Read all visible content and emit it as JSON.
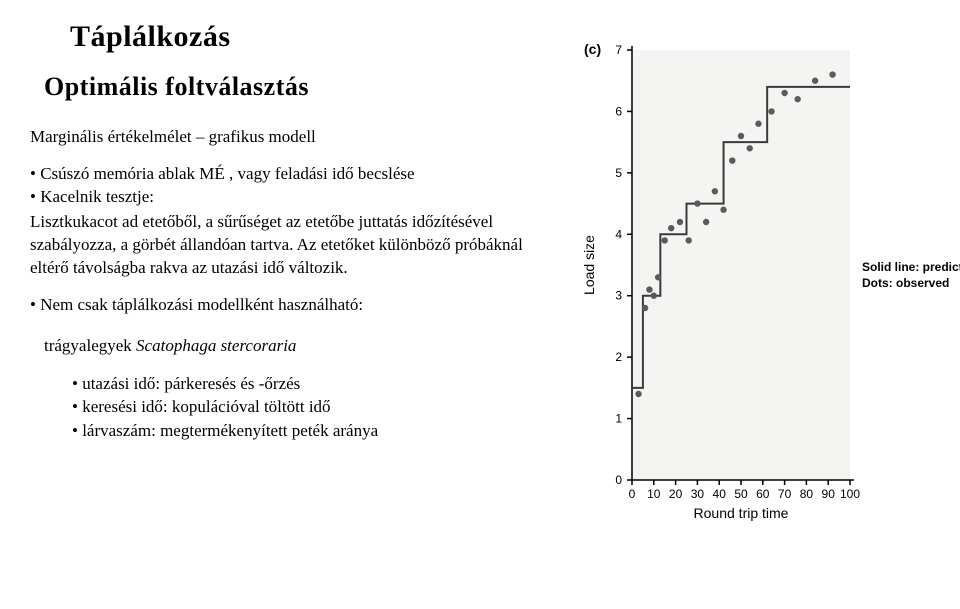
{
  "title": "Táplálkozás",
  "subtitle": "Optimális foltválasztás",
  "para1": "Marginális értékelmélet – grafikus modell",
  "bullet1a": "Csúszó memória ablak MÉ , vagy feladási idő becslése",
  "bullet1b": "Kacelnik tesztje:",
  "para2": "Lisztkukacot ad etetőből, a sűrűséget az etetőbe juttatás időzítésével szabályozza, a görbét állandóan tartva. Az etetőket különböző próbáknál eltérő távolságba rakva az utazási idő változik.",
  "bullet2": "Nem csak táplálkozási modellként használható:",
  "species_pre": "trágyalegyek ",
  "species_italic": "Scatophaga stercoraria",
  "sub1": "utazási idő: párkeresés és -őrzés",
  "sub2": "keresési idő: kopulációval töltött idő",
  "sub3": "lárvaszám: megtermékenyített peték aránya",
  "chart": {
    "type": "scatter-step",
    "panel_label": "(c)",
    "ylabel": "Load size",
    "xlabel": "Round trip time",
    "legend1": "Solid line: prediction",
    "legend2": "Dots: observed",
    "ylim": [
      0,
      7
    ],
    "xlim": [
      0,
      100
    ],
    "yticks": [
      0,
      1,
      2,
      3,
      4,
      5,
      6,
      7
    ],
    "xticks": [
      0,
      10,
      20,
      30,
      40,
      50,
      60,
      70,
      80,
      90,
      100
    ],
    "background": "#f4f4f2",
    "axis_color": "#000000",
    "dot_color": "#5b5b5b",
    "line_color": "#3a3a3a",
    "font_family": "sans-serif",
    "label_fontsize": 14,
    "tick_fontsize": 12,
    "step_line": [
      [
        0,
        1.5
      ],
      [
        5,
        1.5
      ],
      [
        5,
        3
      ],
      [
        13,
        3
      ],
      [
        13,
        4
      ],
      [
        25,
        4
      ],
      [
        25,
        4.5
      ],
      [
        42,
        4.5
      ],
      [
        42,
        5.5
      ],
      [
        62,
        5.5
      ],
      [
        62,
        6.4
      ],
      [
        100,
        6.4
      ]
    ],
    "dots": [
      [
        3,
        1.4
      ],
      [
        6,
        2.8
      ],
      [
        8,
        3.1
      ],
      [
        10,
        3.0
      ],
      [
        12,
        3.3
      ],
      [
        15,
        3.9
      ],
      [
        18,
        4.1
      ],
      [
        22,
        4.2
      ],
      [
        26,
        3.9
      ],
      [
        30,
        4.5
      ],
      [
        34,
        4.2
      ],
      [
        38,
        4.7
      ],
      [
        42,
        4.4
      ],
      [
        46,
        5.2
      ],
      [
        50,
        5.6
      ],
      [
        54,
        5.4
      ],
      [
        58,
        5.8
      ],
      [
        64,
        6.0
      ],
      [
        70,
        6.3
      ],
      [
        76,
        6.2
      ],
      [
        84,
        6.5
      ],
      [
        92,
        6.6
      ]
    ]
  }
}
